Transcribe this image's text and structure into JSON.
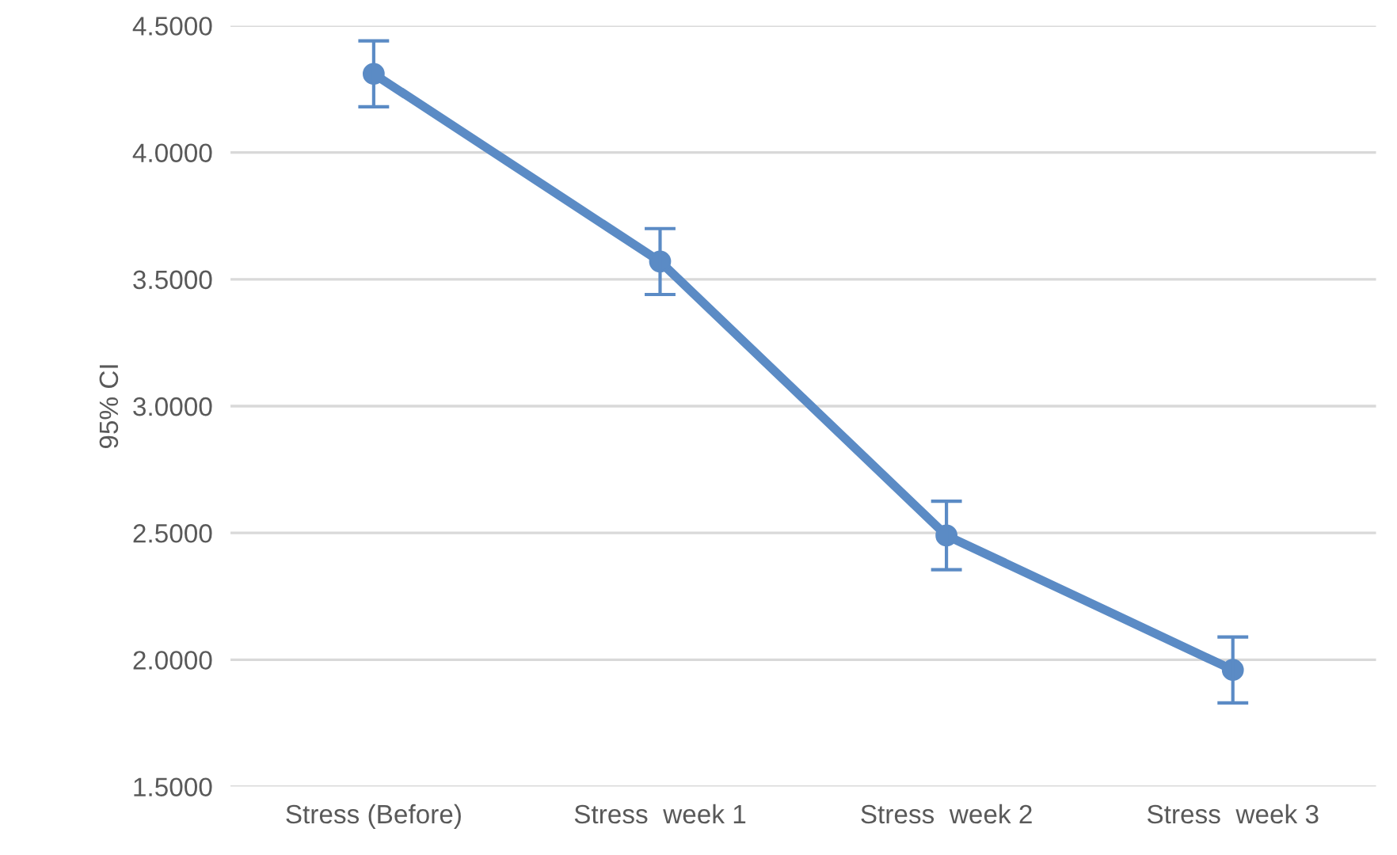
{
  "chart_data": {
    "type": "line",
    "ylabel": "95% CI",
    "categories": [
      "Stress (Before)",
      "Stress  week 1",
      "Stress  week 2",
      "Stress  week 3"
    ],
    "series": [
      {
        "color": "#5b8bc5",
        "values": [
          4.31,
          3.57,
          2.49,
          1.96
        ],
        "errors": [
          0.13,
          0.13,
          0.135,
          0.13
        ]
      }
    ],
    "ylim": [
      1.5,
      4.5
    ],
    "yticks": [
      {
        "value": 1.5,
        "label": "1.5000"
      },
      {
        "value": 2.0,
        "label": "2.0000"
      },
      {
        "value": 2.5,
        "label": "2.5000"
      },
      {
        "value": 3.0,
        "label": "3.0000"
      },
      {
        "value": 3.5,
        "label": "3.5000"
      },
      {
        "value": 4.0,
        "label": "4.0000"
      },
      {
        "value": 4.5,
        "label": "4.5000"
      }
    ],
    "grid": "y",
    "marker": "circle",
    "line_style": "solid"
  }
}
